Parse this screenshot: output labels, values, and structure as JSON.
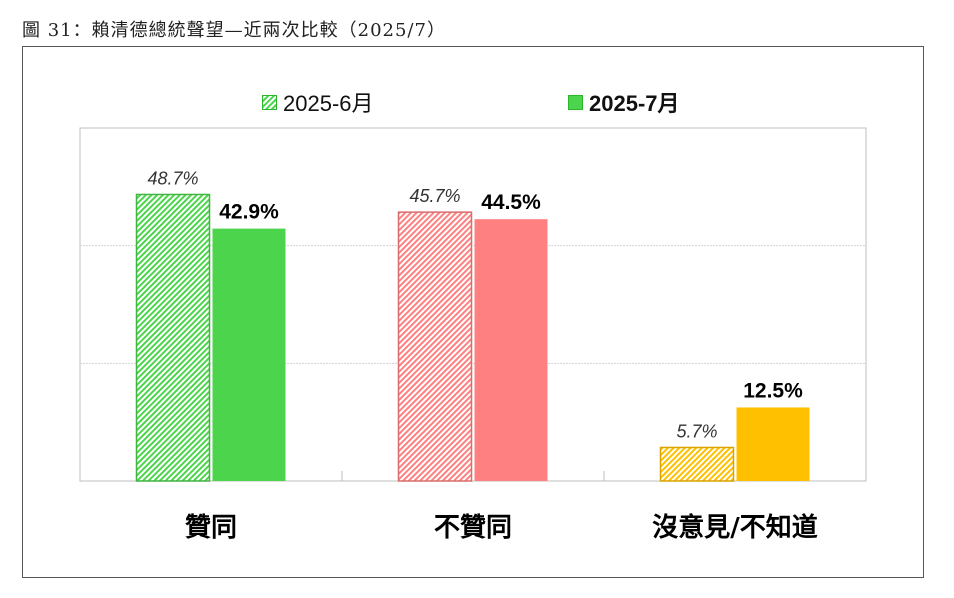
{
  "figure_title": "圖 31：賴清德總統聲望—近兩次比較（2025/7）",
  "chart_data": {
    "type": "bar",
    "categories": [
      "贊同",
      "不贊同",
      "沒意見/不知道"
    ],
    "series": [
      {
        "name": "2025-6月",
        "values": [
          48.7,
          45.7,
          5.7
        ],
        "style": "hatched",
        "labels": [
          "48.7%",
          "45.7%",
          "5.7%"
        ]
      },
      {
        "name": "2025-7月",
        "values": [
          42.9,
          44.5,
          12.5
        ],
        "style": "solid",
        "labels": [
          "42.9%",
          "44.5%",
          "12.5%"
        ]
      }
    ],
    "category_colors": [
      "#4cd44c",
      "#fe8080",
      "#ffc000"
    ],
    "ylim": [
      0,
      60
    ],
    "grid": true,
    "legend_position": "top"
  }
}
